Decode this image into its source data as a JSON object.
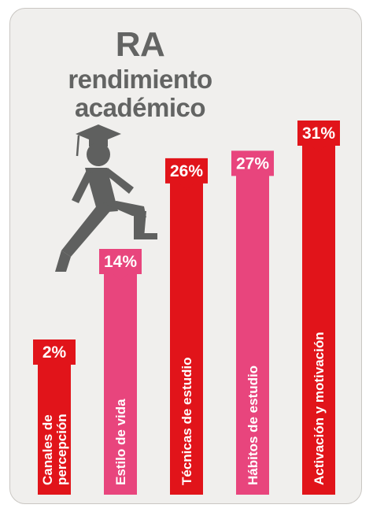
{
  "header": {
    "abbr": "RA",
    "subtitle": "rendimiento\nacadémico"
  },
  "colors": {
    "background": "#f0efed",
    "border": "#c9c6c2",
    "title_gray": "#636463",
    "red": "#e1141a",
    "pink": "#e8457d",
    "figure_gray": "#5f605f"
  },
  "icons": [
    "graduate-climbing-icon"
  ],
  "chart_data": {
    "type": "bar",
    "title": "RA rendimiento académico",
    "xlabel": "",
    "ylabel": "",
    "ylim": [
      0,
      31
    ],
    "grid": false,
    "legend": "none",
    "categories": [
      "Canales de percepción",
      "Estilo de vida",
      "Técnicas de estudio",
      "Hábitos de estudio",
      "Activación y motivación"
    ],
    "category_lines": [
      [
        "Canales de",
        "percepción"
      ],
      [
        "Estilo de vida"
      ],
      [
        "Técnicas de estudio"
      ],
      [
        "Hábitos de estudio"
      ],
      [
        "Activación y motivación"
      ]
    ],
    "values": [
      2,
      14,
      26,
      27,
      31
    ],
    "value_labels": [
      "2%",
      "14%",
      "26%",
      "27%",
      "31%"
    ],
    "bar_colors": [
      "#e1141a",
      "#e8457d",
      "#e1141a",
      "#e8457d",
      "#e1141a"
    ]
  }
}
